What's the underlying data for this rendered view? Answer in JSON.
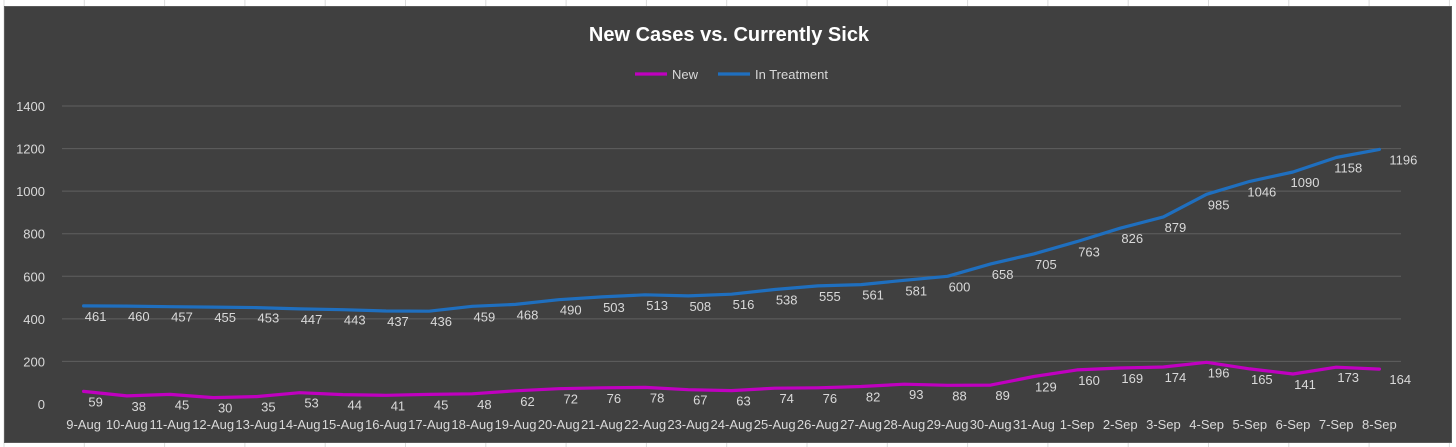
{
  "chart_data": {
    "type": "line",
    "title": "New Cases vs. Currently Sick",
    "legend_position": "top",
    "grid": true,
    "ylim": [
      0,
      1400
    ],
    "yticks": [
      0,
      200,
      400,
      600,
      800,
      1000,
      1200,
      1400
    ],
    "categories": [
      "9-Aug",
      "10-Aug",
      "11-Aug",
      "12-Aug",
      "13-Aug",
      "14-Aug",
      "15-Aug",
      "16-Aug",
      "17-Aug",
      "18-Aug",
      "19-Aug",
      "20-Aug",
      "21-Aug",
      "22-Aug",
      "23-Aug",
      "24-Aug",
      "25-Aug",
      "26-Aug",
      "27-Aug",
      "28-Aug",
      "29-Aug",
      "30-Aug",
      "31-Aug",
      "1-Sep",
      "2-Sep",
      "3-Sep",
      "4-Sep",
      "5-Sep",
      "6-Sep",
      "7-Sep",
      "8-Sep"
    ],
    "series": [
      {
        "name": "New",
        "color": "#c000c0",
        "values": [
          59,
          38,
          45,
          30,
          35,
          53,
          44,
          41,
          45,
          48,
          62,
          72,
          76,
          78,
          67,
          63,
          74,
          76,
          82,
          93,
          88,
          89,
          129,
          160,
          169,
          174,
          196,
          165,
          141,
          173,
          164
        ]
      },
      {
        "name": "In Treatment",
        "color": "#1f6fbf",
        "values": [
          461,
          460,
          457,
          455,
          453,
          447,
          443,
          437,
          436,
          459,
          468,
          490,
          503,
          513,
          508,
          516,
          538,
          555,
          561,
          581,
          600,
          658,
          705,
          763,
          826,
          879,
          985,
          1046,
          1090,
          1158,
          1196
        ]
      }
    ]
  }
}
